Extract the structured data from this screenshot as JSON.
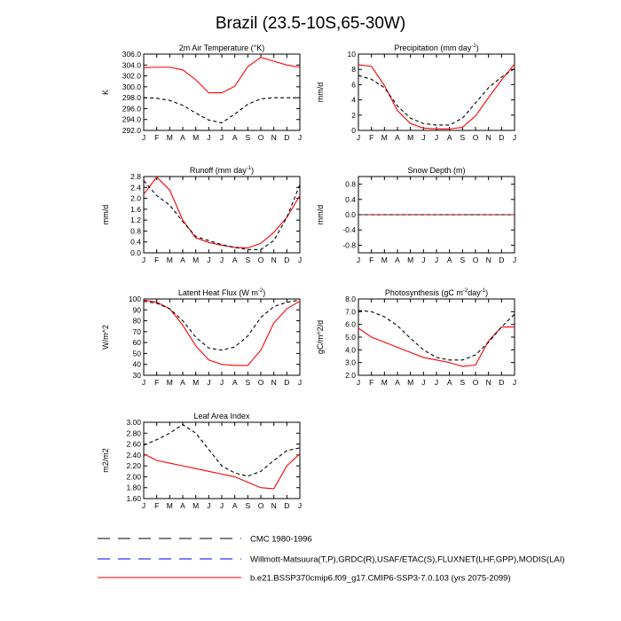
{
  "title": "Brazil (23.5-10S,65-30W)",
  "colors": {
    "cmc": "#000000",
    "obs": "#0000ff",
    "model": "#ff0000"
  },
  "legend": [
    {
      "key": "cmc",
      "label": "CMC 1980-1996"
    },
    {
      "key": "obs",
      "label": "Willmott-Matsuura(T,P),GRDC(R),USAF/ETAC(S),FLUXNET(LHF,GPP),MODIS(LAI)"
    },
    {
      "key": "model",
      "label": "b.e21.BSSP370cmip6.f09_g17.CMIP6-SSP3-7.0.103 (yrs 2075-2099)"
    }
  ],
  "chart_data": [
    {
      "type": "line",
      "title": "2m Air Temperature (°K)",
      "ylabel": "K",
      "categories": [
        "J",
        "F",
        "M",
        "A",
        "M",
        "J",
        "J",
        "A",
        "S",
        "O",
        "N",
        "D",
        "J"
      ],
      "ylim": [
        292,
        306
      ],
      "yticks": [
        292,
        294,
        296,
        298,
        300,
        302,
        304,
        306
      ],
      "ytick_labels": [
        "292.0",
        "294.0",
        "296.0",
        "298.0",
        "300.0",
        "302.0",
        "304.0",
        "306.0"
      ],
      "series": [
        {
          "name": "CMC 1980-1996",
          "key": "cmc",
          "values": [
            298.0,
            297.9,
            297.5,
            296.6,
            295.2,
            293.9,
            293.4,
            295.0,
            296.8,
            297.8,
            298.0,
            298.0,
            298.0
          ]
        },
        {
          "name": "b.e21.BSSP370cmip6.f09_g17.CMIP6-SSP3-7.0.103 (yrs 2075-2099)",
          "key": "model",
          "values": [
            303.5,
            303.6,
            303.6,
            303.1,
            301.3,
            298.9,
            298.9,
            300.1,
            303.7,
            305.4,
            304.7,
            304.0,
            303.6
          ]
        }
      ]
    },
    {
      "type": "line",
      "title": "Precipitation (mm day-1)",
      "ylabel": "mm/d",
      "categories": [
        "J",
        "F",
        "M",
        "A",
        "M",
        "J",
        "J",
        "A",
        "S",
        "O",
        "N",
        "D",
        "J"
      ],
      "ylim": [
        0,
        10
      ],
      "yticks": [
        0,
        2,
        4,
        6,
        8,
        10
      ],
      "ytick_labels": [
        "0",
        "2",
        "4",
        "6",
        "8",
        "10"
      ],
      "series": [
        {
          "name": "CMC 1980-1996",
          "key": "cmc",
          "values": [
            7.2,
            6.7,
            5.6,
            3.2,
            1.6,
            0.9,
            0.7,
            0.7,
            1.6,
            3.6,
            5.6,
            7.0,
            8.1
          ]
        },
        {
          "name": "b.e21.BSSP370cmip6.f09_g17.CMIP6-SSP3-7.0.103 (yrs 2075-2099)",
          "key": "model",
          "values": [
            8.6,
            8.4,
            5.9,
            2.6,
            0.9,
            0.3,
            0.2,
            0.2,
            0.4,
            1.9,
            4.3,
            6.6,
            8.7
          ]
        }
      ]
    },
    {
      "type": "line",
      "title": "Runoff (mm day-1)",
      "ylabel": "mm/d",
      "categories": [
        "J",
        "F",
        "M",
        "A",
        "M",
        "J",
        "J",
        "A",
        "S",
        "O",
        "N",
        "D",
        "J"
      ],
      "ylim": [
        0,
        2.8
      ],
      "yticks": [
        0,
        0.4,
        0.8,
        1.2,
        1.6,
        2.0,
        2.4,
        2.8
      ],
      "ytick_labels": [
        "0.0",
        "0.4",
        "0.8",
        "1.2",
        "1.6",
        "2.0",
        "2.4",
        "2.8"
      ],
      "series": [
        {
          "name": "CMC 1980-1996",
          "key": "cmc",
          "values": [
            2.65,
            2.1,
            1.75,
            1.15,
            0.6,
            0.45,
            0.3,
            0.2,
            0.12,
            0.12,
            0.45,
            1.3,
            2.5
          ]
        },
        {
          "name": "b.e21.BSSP370cmip6.f09_g17.CMIP6-SSP3-7.0.103 (yrs 2075-2099)",
          "key": "model",
          "values": [
            2.15,
            2.78,
            2.3,
            1.2,
            0.55,
            0.38,
            0.28,
            0.2,
            0.18,
            0.35,
            0.75,
            1.3,
            2.1
          ]
        }
      ]
    },
    {
      "type": "line",
      "title": "Snow Depth (m)",
      "ylabel": "mm/d",
      "categories": [
        "J",
        "F",
        "M",
        "A",
        "M",
        "J",
        "J",
        "A",
        "S",
        "O",
        "N",
        "D",
        "J"
      ],
      "ylim": [
        -1,
        1
      ],
      "yticks": [
        -0.8,
        -0.4,
        0,
        0.4,
        0.8
      ],
      "ytick_labels": [
        "-0.8",
        "-0.4",
        "0.0",
        "0.4",
        "0.8"
      ],
      "series": [
        {
          "name": "CMC 1980-1996",
          "key": "cmc",
          "values": [
            0,
            0,
            0,
            0,
            0,
            0,
            0,
            0,
            0,
            0,
            0,
            0,
            0
          ]
        },
        {
          "name": "b.e21.BSSP370cmip6.f09_g17.CMIP6-SSP3-7.0.103 (yrs 2075-2099)",
          "key": "model",
          "values": [
            0,
            0,
            0,
            0,
            0,
            0,
            0,
            0,
            0,
            0,
            0,
            0,
            0
          ]
        }
      ]
    },
    {
      "type": "line",
      "title": "Latent Heat Flux (W m-2)",
      "ylabel": "W/m^2",
      "categories": [
        "J",
        "F",
        "M",
        "A",
        "M",
        "J",
        "J",
        "A",
        "S",
        "O",
        "N",
        "D",
        "J"
      ],
      "ylim": [
        30,
        100
      ],
      "yticks": [
        30,
        40,
        50,
        60,
        70,
        80,
        90,
        100
      ],
      "ytick_labels": [
        "30",
        "40",
        "50",
        "60",
        "70",
        "80",
        "90",
        "100"
      ],
      "series": [
        {
          "name": "CMC 1980-1996",
          "key": "cmc",
          "values": [
            98,
            96,
            91,
            80,
            65,
            55,
            53,
            56,
            66,
            83,
            93,
            97,
            99
          ]
        },
        {
          "name": "b.e21.BSSP370cmip6.f09_g17.CMIP6-SSP3-7.0.103 (yrs 2075-2099)",
          "key": "model",
          "values": [
            99,
            97,
            91,
            76,
            57,
            44,
            40,
            39,
            39,
            53,
            78,
            91,
            98
          ]
        }
      ]
    },
    {
      "type": "line",
      "title": "Photosynthesis (gC m-2day-1)",
      "ylabel": "gC/m^2/d",
      "categories": [
        "J",
        "F",
        "M",
        "A",
        "M",
        "J",
        "J",
        "A",
        "S",
        "O",
        "N",
        "D",
        "J"
      ],
      "ylim": [
        2,
        8
      ],
      "yticks": [
        2,
        3,
        4,
        5,
        6,
        7,
        8
      ],
      "ytick_labels": [
        "2.0",
        "3.0",
        "4.0",
        "5.0",
        "6.0",
        "7.0",
        "8.0"
      ],
      "series": [
        {
          "name": "CMC 1980-1996",
          "key": "cmc",
          "values": [
            7.1,
            7.0,
            6.6,
            5.9,
            4.9,
            4.0,
            3.4,
            3.2,
            3.2,
            3.6,
            4.6,
            5.8,
            6.8
          ]
        },
        {
          "name": "b.e21.BSSP370cmip6.f09_g17.CMIP6-SSP3-7.0.103 (yrs 2075-2099)",
          "key": "model",
          "values": [
            5.7,
            5.0,
            4.6,
            4.2,
            3.8,
            3.4,
            3.2,
            3.0,
            2.7,
            2.8,
            4.7,
            5.8,
            5.8
          ]
        }
      ]
    },
    {
      "type": "line",
      "title": "Leaf Area Index",
      "ylabel": "m2/m2",
      "categories": [
        "J",
        "F",
        "M",
        "A",
        "M",
        "J",
        "J",
        "A",
        "S",
        "O",
        "N",
        "D",
        "J"
      ],
      "ylim": [
        1.6,
        3.0
      ],
      "yticks": [
        1.6,
        1.8,
        2.0,
        2.2,
        2.4,
        2.6,
        2.8,
        3.0
      ],
      "ytick_labels": [
        "1.60",
        "1.80",
        "2.00",
        "2.20",
        "2.40",
        "2.60",
        "2.80",
        "3.00"
      ],
      "series": [
        {
          "name": "CMC 1980-1996",
          "key": "cmc",
          "values": [
            2.58,
            2.68,
            2.8,
            2.96,
            2.8,
            2.5,
            2.2,
            2.07,
            2.01,
            2.1,
            2.3,
            2.48,
            2.53
          ]
        },
        {
          "name": "b.e21.BSSP370cmip6.f09_g17.CMIP6-SSP3-7.0.103 (yrs 2075-2099)",
          "key": "model",
          "values": [
            2.42,
            2.3,
            2.25,
            2.2,
            2.15,
            2.1,
            2.05,
            2.0,
            1.9,
            1.8,
            1.78,
            2.2,
            2.42
          ]
        }
      ]
    }
  ]
}
